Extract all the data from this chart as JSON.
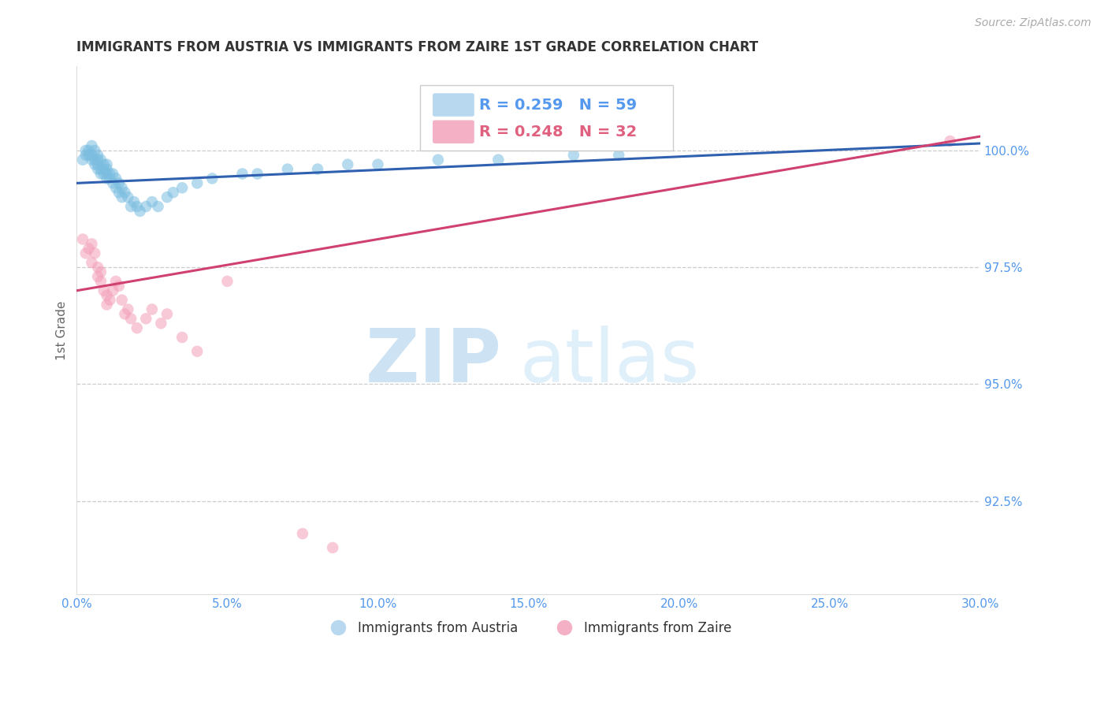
{
  "title": "IMMIGRANTS FROM AUSTRIA VS IMMIGRANTS FROM ZAIRE 1ST GRADE CORRELATION CHART",
  "source_text": "Source: ZipAtlas.com",
  "ylabel": "1st Grade",
  "xlim": [
    0.0,
    30.0
  ],
  "ylim": [
    90.5,
    101.8
  ],
  "yticks": [
    92.5,
    95.0,
    97.5,
    100.0
  ],
  "ytick_labels": [
    "92.5%",
    "95.0%",
    "97.5%",
    "100.0%"
  ],
  "xticks": [
    0.0,
    5.0,
    10.0,
    15.0,
    20.0,
    25.0,
    30.0
  ],
  "xtick_labels": [
    "0.0%",
    "5.0%",
    "10.0%",
    "15.0%",
    "20.0%",
    "25.0%",
    "30.0%"
  ],
  "austria_color": "#7bbde0",
  "zaire_color": "#f4a0b8",
  "austria_line_color": "#3060b0",
  "zaire_line_color": "#d04070",
  "legend_austria": "Immigrants from Austria",
  "legend_zaire": "Immigrants from Zaire",
  "R_austria": 0.259,
  "N_austria": 59,
  "R_zaire": 0.248,
  "N_zaire": 32,
  "austria_x": [
    0.2,
    0.3,
    0.3,
    0.4,
    0.4,
    0.5,
    0.5,
    0.5,
    0.6,
    0.6,
    0.6,
    0.7,
    0.7,
    0.7,
    0.7,
    0.8,
    0.8,
    0.8,
    0.9,
    0.9,
    0.9,
    1.0,
    1.0,
    1.0,
    1.0,
    1.1,
    1.1,
    1.2,
    1.2,
    1.3,
    1.3,
    1.4,
    1.4,
    1.5,
    1.5,
    1.6,
    1.7,
    1.8,
    1.9,
    2.0,
    2.1,
    2.3,
    2.5,
    2.7,
    3.0,
    3.2,
    3.5,
    4.0,
    4.5,
    5.5,
    6.0,
    7.0,
    8.0,
    9.0,
    10.0,
    12.0,
    14.0,
    16.5,
    18.0
  ],
  "austria_y": [
    99.8,
    100.0,
    99.9,
    99.9,
    100.0,
    99.8,
    99.9,
    100.1,
    99.7,
    99.8,
    100.0,
    99.6,
    99.7,
    99.8,
    99.9,
    99.5,
    99.6,
    99.8,
    99.5,
    99.6,
    99.7,
    99.4,
    99.5,
    99.6,
    99.7,
    99.4,
    99.5,
    99.3,
    99.5,
    99.2,
    99.4,
    99.1,
    99.3,
    99.0,
    99.2,
    99.1,
    99.0,
    98.8,
    98.9,
    98.8,
    98.7,
    98.8,
    98.9,
    98.8,
    99.0,
    99.1,
    99.2,
    99.3,
    99.4,
    99.5,
    99.5,
    99.6,
    99.6,
    99.7,
    99.7,
    99.8,
    99.8,
    99.9,
    99.9
  ],
  "zaire_x": [
    0.2,
    0.3,
    0.4,
    0.5,
    0.5,
    0.6,
    0.7,
    0.7,
    0.8,
    0.8,
    0.9,
    1.0,
    1.0,
    1.1,
    1.2,
    1.3,
    1.4,
    1.5,
    1.6,
    1.7,
    1.8,
    2.0,
    2.3,
    2.5,
    2.8,
    3.0,
    3.5,
    4.0,
    5.0,
    7.5,
    8.5,
    29.0
  ],
  "zaire_y": [
    98.1,
    97.8,
    97.9,
    98.0,
    97.6,
    97.8,
    97.5,
    97.3,
    97.4,
    97.2,
    97.0,
    96.9,
    96.7,
    96.8,
    97.0,
    97.2,
    97.1,
    96.8,
    96.5,
    96.6,
    96.4,
    96.2,
    96.4,
    96.6,
    96.3,
    96.5,
    96.0,
    95.7,
    97.2,
    91.8,
    91.5,
    100.2
  ],
  "watermark_zip": "ZIP",
  "watermark_atlas": "atlas",
  "background_color": "#ffffff",
  "grid_color": "#cccccc",
  "title_color": "#333333",
  "axis_label_color": "#666666",
  "tick_label_color": "#5599ee",
  "legend_R_color_blue": "#5599ee",
  "legend_R_color_pink": "#e06080"
}
